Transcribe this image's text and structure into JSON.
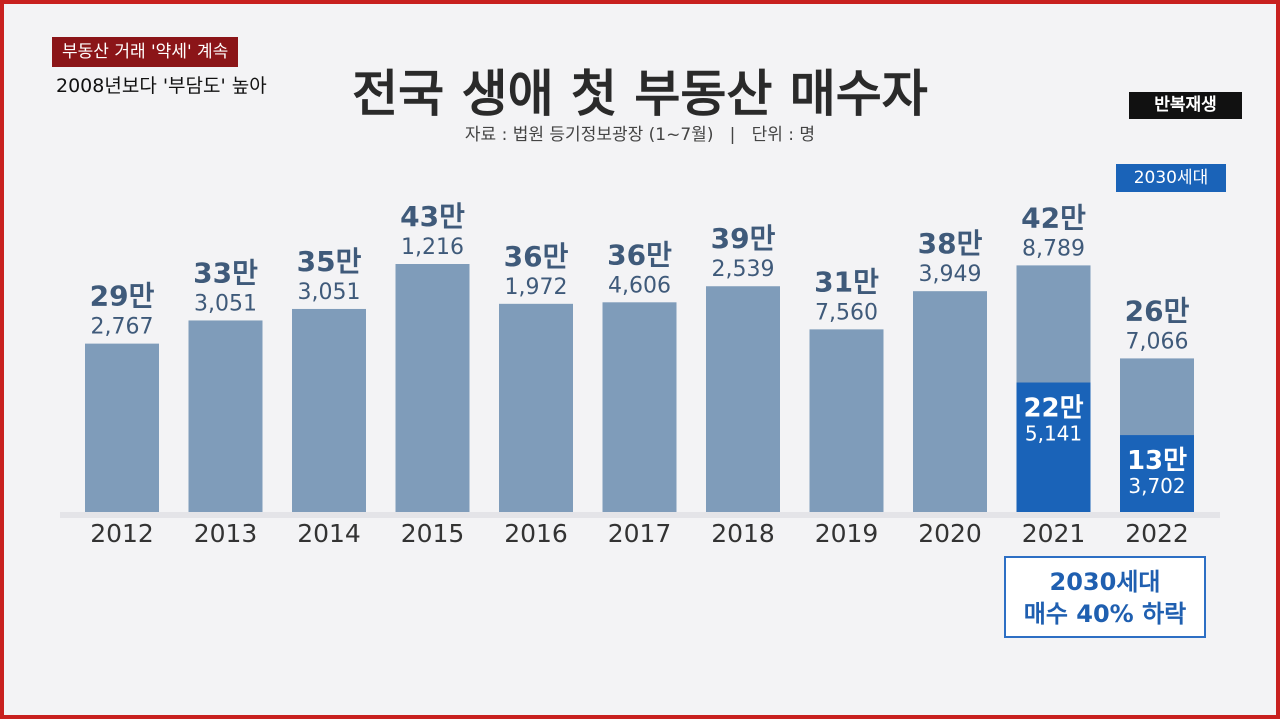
{
  "caption": {
    "line1": "부동산 거래 '약세' 계속",
    "line2": "2008년보다 '부담도' 높아"
  },
  "badge": {
    "replay": "반복재생"
  },
  "chart_data": {
    "type": "bar",
    "title": "전국 생애 첫 부동산 매수자",
    "subtitle": "자료 : 법원 등기정보광장 (1~7월)   |   단위 : 명",
    "categories": [
      "2012",
      "2013",
      "2014",
      "2015",
      "2016",
      "2017",
      "2018",
      "2019",
      "2020",
      "2021",
      "2022"
    ],
    "series": [
      {
        "name": "",
        "values": [
          292767,
          333051,
          353051,
          431216,
          361972,
          364606,
          392539,
          317560,
          383949,
          428789,
          267066
        ],
        "labels_main": [
          "29만",
          "33만",
          "35만",
          "43만",
          "36만",
          "36만",
          "39만",
          "31만",
          "38만",
          "42만",
          "26만"
        ],
        "labels_sub": [
          "2,767",
          "3,051",
          "3,051",
          "1,216",
          "1,972",
          "4,606",
          "2,539",
          "7,560",
          "3,949",
          "8,789",
          "7,066"
        ],
        "color": "#7f9cba"
      },
      {
        "name": "2030세대",
        "values": [
          null,
          null,
          null,
          null,
          null,
          null,
          null,
          null,
          null,
          225141,
          133702
        ],
        "labels_main": [
          "",
          "",
          "",
          "",
          "",
          "",
          "",
          "",
          "",
          "22만",
          "13만"
        ],
        "labels_sub": [
          "",
          "",
          "",
          "",
          "",
          "",
          "",
          "",
          "",
          "5,141",
          "3,702"
        ],
        "color": "#1a63b8"
      }
    ],
    "callout": [
      "2030세대",
      "매수 40% 하락"
    ]
  },
  "colors": {
    "background": "#f3f3f5",
    "bar": "#7f9cba",
    "highlight": "#1a63b8",
    "frame": "#c8201e"
  }
}
